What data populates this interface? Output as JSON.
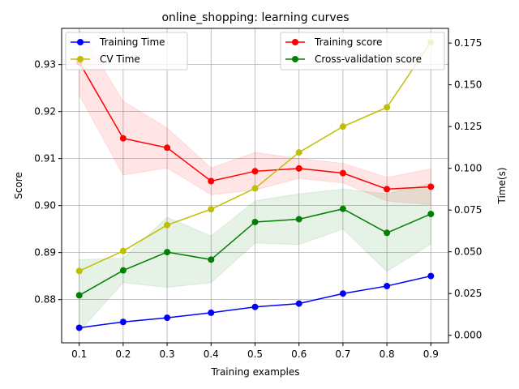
{
  "chart_data": {
    "type": "line",
    "title": "online_shopping: learning curves",
    "xlabel": "Training examples",
    "ylabel_left": "Score",
    "ylabel_right": "Time(s)",
    "x": [
      0.1,
      0.2,
      0.3,
      0.4,
      0.5,
      0.6,
      0.7,
      0.8,
      0.9
    ],
    "xlim": [
      0.06,
      0.94
    ],
    "xticks": [
      "0.1",
      "0.2",
      "0.3",
      "0.4",
      "0.5",
      "0.6",
      "0.7",
      "0.8",
      "0.9"
    ],
    "ylim_left": [
      0.8708,
      0.9377
    ],
    "yticks_left": [
      "0.88",
      "0.89",
      "0.90",
      "0.91",
      "0.92",
      "0.93"
    ],
    "ylim_right": [
      -0.0045,
      0.1838
    ],
    "yticks_right": [
      "0.000",
      "0.025",
      "0.050",
      "0.075",
      "0.100",
      "0.125",
      "0.150",
      "0.175"
    ],
    "grid": true,
    "score_series": [
      {
        "name": "Training score",
        "color": "#ff0000",
        "values": [
          0.9305,
          0.9143,
          0.9123,
          0.9052,
          0.9073,
          0.9079,
          0.9069,
          0.9035,
          0.904
        ],
        "band_upper": [
          0.9375,
          0.9222,
          0.9165,
          0.908,
          0.9113,
          0.91,
          0.909,
          0.906,
          0.9078
        ],
        "band_lower": [
          0.9235,
          0.9065,
          0.908,
          0.9023,
          0.9033,
          0.9058,
          0.9048,
          0.901,
          0.9002
        ]
      },
      {
        "name": "Cross-validation score",
        "color": "#008000",
        "values": [
          0.8809,
          0.8862,
          0.8901,
          0.8885,
          0.8965,
          0.8971,
          0.8993,
          0.8942,
          0.8982
        ],
        "band_upper": [
          0.8885,
          0.8888,
          0.8975,
          0.8935,
          0.901,
          0.9025,
          0.9035,
          0.9025,
          0.9047
        ],
        "band_lower": [
          0.8732,
          0.8836,
          0.8826,
          0.8836,
          0.892,
          0.8917,
          0.895,
          0.886,
          0.8918
        ]
      }
    ],
    "time_series": [
      {
        "name": "Training Time",
        "color": "#0000ff",
        "values": [
          0.0045,
          0.008,
          0.0105,
          0.0135,
          0.017,
          0.019,
          0.025,
          0.0295,
          0.0355
        ]
      },
      {
        "name": "CV Time",
        "color": "#bfbf00",
        "values": [
          0.0385,
          0.0505,
          0.066,
          0.0755,
          0.088,
          0.1095,
          0.125,
          0.1365,
          0.1755
        ]
      }
    ],
    "legend_left": {
      "placement": "upper-left",
      "entries": [
        "Training Time",
        "CV Time"
      ]
    },
    "legend_right": {
      "placement": "upper-right",
      "entries": [
        "Training score",
        "Cross-validation score"
      ]
    }
  }
}
